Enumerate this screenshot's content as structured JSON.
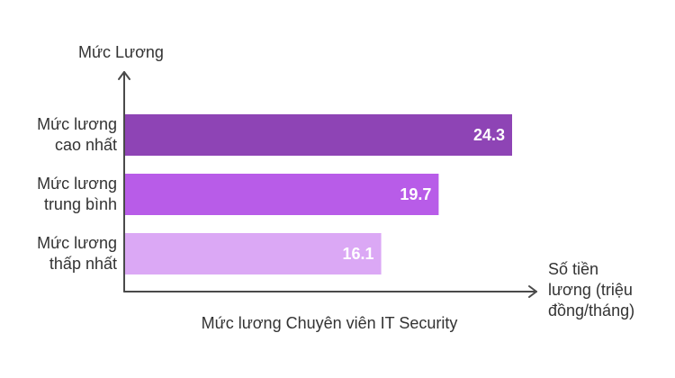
{
  "chart_data": {
    "type": "bar",
    "orientation": "horizontal",
    "title": "",
    "caption": "Mức lương Chuyên viên IT Security",
    "ylabel": "Mức Lương",
    "xlabel": "Số tiền lương (triệu đồng/tháng)",
    "xlabel_lines": [
      "Số tiền",
      "lương (triệu",
      "đồng/tháng)"
    ],
    "categories": [
      {
        "label": "Mức lương cao nhất",
        "lines": [
          "Mức lương",
          "cao nhất"
        ],
        "value": 24.3,
        "value_label": "24.3",
        "color": "#8e44b5"
      },
      {
        "label": "Mức lương trung bình",
        "lines": [
          "Mức lương",
          "trung bình"
        ],
        "value": 19.7,
        "value_label": "19.7",
        "color": "#b85ce8"
      },
      {
        "label": "Mức lương thấp nhất",
        "lines": [
          "Mức lương",
          "thấp nhất"
        ],
        "value": 16.1,
        "value_label": "16.1",
        "color": "#dba8f5"
      }
    ],
    "grid": false,
    "axis_color": "#4a4a4a"
  }
}
